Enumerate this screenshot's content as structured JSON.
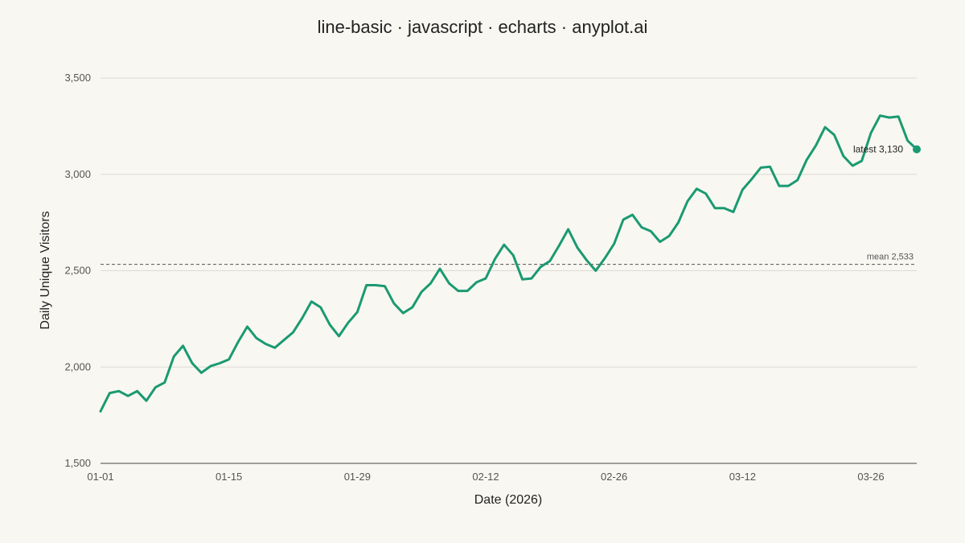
{
  "chart_data": {
    "type": "line",
    "title": "line-basic · javascript · echarts · anyplot.ai",
    "xlabel": "Date (2026)",
    "ylabel": "Daily Unique Visitors",
    "ylim": [
      1500,
      3500
    ],
    "yticks": [
      1500,
      2000,
      2500,
      3000,
      3500
    ],
    "ytick_labels": [
      "1,500",
      "2,000",
      "2,500",
      "3,000",
      "3,500"
    ],
    "xticks": [
      0,
      14,
      28,
      42,
      56,
      70,
      84
    ],
    "xtick_labels": [
      "01-01",
      "01-15",
      "01-29",
      "02-12",
      "02-26",
      "03-12",
      "03-26"
    ],
    "grid": true,
    "line_color": "#1a9a72",
    "mean": 2533,
    "mean_label": "mean 2,533",
    "latest_label": "latest 3,130",
    "series": [
      {
        "x": [
          "01-01",
          "01-02",
          "01-03",
          "01-04",
          "01-05",
          "01-06",
          "01-07",
          "01-08",
          "01-09",
          "01-10",
          "01-11",
          "01-12",
          "01-13",
          "01-14",
          "01-15",
          "01-16",
          "01-17",
          "01-18",
          "01-19",
          "01-20",
          "01-21",
          "01-22",
          "01-23",
          "01-24",
          "01-25",
          "01-26",
          "01-27",
          "01-28",
          "01-29",
          "01-30",
          "01-31",
          "02-01",
          "02-02",
          "02-03",
          "02-04",
          "02-05",
          "02-06",
          "02-07",
          "02-08",
          "02-09",
          "02-10",
          "02-11",
          "02-12",
          "02-13",
          "02-14",
          "02-15",
          "02-16",
          "02-17",
          "02-18",
          "02-19",
          "02-20",
          "02-21",
          "02-22",
          "02-23",
          "02-24",
          "02-25",
          "02-26",
          "02-27",
          "02-28",
          "03-01",
          "03-02",
          "03-03",
          "03-04",
          "03-05",
          "03-06",
          "03-07",
          "03-08",
          "03-09",
          "03-10",
          "03-11",
          "03-12",
          "03-13",
          "03-14",
          "03-15",
          "03-16",
          "03-17",
          "03-18",
          "03-19",
          "03-20",
          "03-21",
          "03-22",
          "03-23",
          "03-24",
          "03-25",
          "03-26",
          "03-27",
          "03-28",
          "03-29",
          "03-30",
          "03-31"
        ],
        "values": [
          1770,
          1865,
          1875,
          1850,
          1875,
          1825,
          1895,
          1920,
          2055,
          2110,
          2020,
          1970,
          2005,
          2020,
          2040,
          2130,
          2210,
          2150,
          2120,
          2100,
          2140,
          2180,
          2255,
          2340,
          2310,
          2220,
          2160,
          2230,
          2285,
          2425,
          2425,
          2420,
          2330,
          2280,
          2310,
          2390,
          2435,
          2510,
          2435,
          2395,
          2395,
          2440,
          2460,
          2560,
          2635,
          2580,
          2455,
          2460,
          2520,
          2550,
          2630,
          2715,
          2620,
          2555,
          2500,
          2565,
          2640,
          2765,
          2790,
          2725,
          2705,
          2650,
          2680,
          2750,
          2860,
          2925,
          2900,
          2825,
          2825,
          2805,
          2920,
          2975,
          3035,
          3040,
          2940,
          2940,
          2970,
          3075,
          3150,
          3245,
          3205,
          3095,
          3045,
          3070,
          3215,
          3305,
          3295,
          3300,
          3175,
          3130
        ]
      }
    ]
  }
}
